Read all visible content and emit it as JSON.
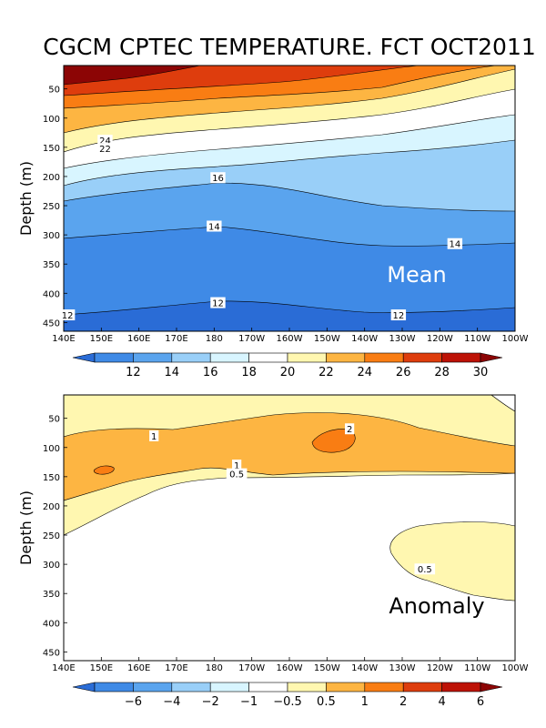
{
  "chart_data": {
    "type": "heatmap",
    "title": "CGCM CPTEC TEMPERATURE. FCT OCT2011",
    "panels": [
      {
        "id": "mean",
        "tag": "Mean",
        "tag_color": "#ffffff",
        "xlabel": "",
        "ylabel": "Depth (m)",
        "x_ticks": [
          "140E",
          "150E",
          "160E",
          "170E",
          "180",
          "170W",
          "160W",
          "150W",
          "140W",
          "130W",
          "120W",
          "110W",
          "100W"
        ],
        "y_ticks": [
          "50",
          "100",
          "150",
          "200",
          "250",
          "300",
          "350",
          "400",
          "450"
        ],
        "y_tick_values": [
          50,
          100,
          150,
          200,
          250,
          300,
          350,
          400,
          450
        ],
        "ylim": [
          465,
          10
        ],
        "background": "#2a6cd6",
        "contour_levels": [
          30,
          28,
          26,
          24,
          22,
          20,
          18,
          16,
          14,
          12
        ],
        "contour_depths": {
          "lon_deg_east": [
            140,
            160,
            180,
            200,
            220,
            240,
            260
          ],
          "30": [
            30,
            28,
            22,
            0,
            0,
            0,
            0
          ],
          "28": [
            60,
            55,
            45,
            30,
            10,
            0,
            0
          ],
          "26": [
            85,
            80,
            72,
            60,
            40,
            20,
            10
          ],
          "24": [
            110,
            104,
            96,
            86,
            70,
            50,
            35
          ],
          "22": [
            140,
            132,
            122,
            110,
            96,
            80,
            70
          ],
          "20": [
            168,
            158,
            146,
            132,
            118,
            104,
            95
          ],
          "18": [
            190,
            180,
            168,
            160,
            150,
            140,
            132
          ],
          "16": [
            218,
            214,
            200,
            212,
            238,
            252,
            250
          ],
          "14": [
            302,
            290,
            282,
            296,
            310,
            314,
            308
          ],
          "12": [
            432,
            426,
            413,
            423,
            432,
            430,
            420
          ]
        },
        "contour_labels": [
          {
            "text": "24",
            "lon": 151,
            "depth": 138
          },
          {
            "text": "22",
            "lon": 151,
            "depth": 152
          },
          {
            "text": "16",
            "lon": 181,
            "depth": 202
          },
          {
            "text": "14",
            "lon": 180,
            "depth": 285
          },
          {
            "text": "14",
            "lon": 244,
            "depth": 315
          },
          {
            "text": "12",
            "lon": 181,
            "depth": 416
          },
          {
            "text": "12",
            "lon": 141,
            "depth": 437
          },
          {
            "text": "12",
            "lon": 229,
            "depth": 437
          }
        ],
        "colorbar": {
          "labels": [
            "12",
            "14",
            "16",
            "18",
            "20",
            "22",
            "24",
            "26",
            "28",
            "30"
          ],
          "colors": [
            "#2a6cd6",
            "#3f8ae6",
            "#5aa4ee",
            "#99cff8",
            "#d8f5ff",
            "#ffffff",
            "#fff7b0",
            "#fdb542",
            "#f97d13",
            "#de3d0d",
            "#bd1206",
            "#8c0505"
          ]
        }
      },
      {
        "id": "anomaly",
        "tag": "Anomaly",
        "tag_color": "#000000",
        "xlabel": "",
        "ylabel": "Depth (m)",
        "x_ticks": [
          "140E",
          "150E",
          "160E",
          "170E",
          "180",
          "170W",
          "160W",
          "150W",
          "140W",
          "130W",
          "120W",
          "110W",
          "100W"
        ],
        "y_ticks": [
          "50",
          "100",
          "150",
          "200",
          "250",
          "300",
          "350",
          "400",
          "450"
        ],
        "y_tick_values": [
          50,
          100,
          150,
          200,
          250,
          300,
          350,
          400,
          450
        ],
        "ylim": [
          465,
          10
        ],
        "background": "#ffffff",
        "regions": [
          {
            "value": 0.5,
            "description": "0.5 to 1 band, surface to about 150-245 m west"
          },
          {
            "value": 1,
            "description": "1 to 2 band, about 55-185 m"
          },
          {
            "value": 2,
            "description": "above 2 patch near 150E and 150W"
          },
          {
            "value": 0.5,
            "description": "0.5 patch, 130W-100W, 250-360 m"
          }
        ],
        "contour_labels": [
          {
            "text": "1",
            "lon": 164,
            "depth": 80
          },
          {
            "text": "2",
            "lon": 216,
            "depth": 68
          },
          {
            "text": "1",
            "lon": 186,
            "depth": 130
          },
          {
            "text": "0.5",
            "lon": 186,
            "depth": 145
          },
          {
            "text": "0.5",
            "lon": 236,
            "depth": 308
          }
        ],
        "colorbar": {
          "labels": [
            "−6",
            "−4",
            "−2",
            "−1",
            "−0.5",
            "0.5",
            "1",
            "2",
            "4",
            "6"
          ],
          "colors": [
            "#2a6cd6",
            "#3f8ae6",
            "#5aa4ee",
            "#99cff8",
            "#d8f5ff",
            "#ffffff",
            "#fff7b0",
            "#fdb542",
            "#f97d13",
            "#de3d0d",
            "#bd1206",
            "#8c0505"
          ]
        }
      }
    ]
  }
}
